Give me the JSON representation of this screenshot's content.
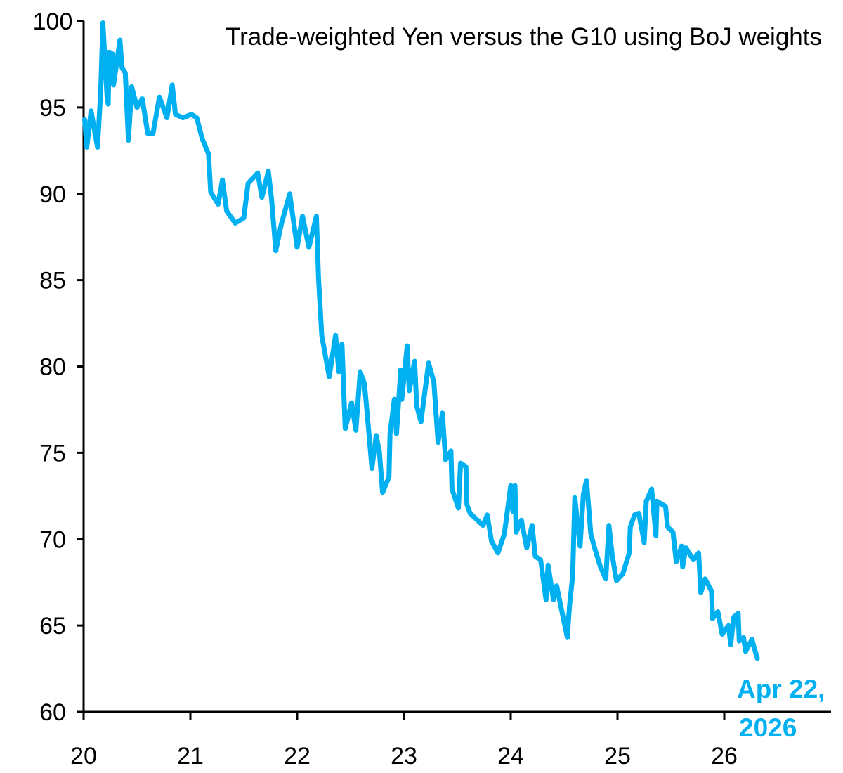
{
  "chart_data": {
    "type": "line",
    "title": "Trade-weighted Yen versus the G10 using BoJ weights",
    "xlabel": "",
    "ylabel": "",
    "xlim": [
      20,
      27
    ],
    "ylim": [
      60,
      100
    ],
    "x_ticks": [
      "20",
      "21",
      "22",
      "23",
      "24",
      "25",
      "26"
    ],
    "y_ticks": [
      "60",
      "65",
      "70",
      "75",
      "80",
      "85",
      "90",
      "95",
      "100"
    ],
    "grid": false,
    "legend": "none",
    "line_color": "#00B0F0",
    "annotation": {
      "line1": "Apr 22,",
      "line2": "2026",
      "color": "#00B0F0"
    },
    "series": [
      {
        "x": [
          20.01,
          20.03,
          20.07,
          20.13,
          20.16,
          20.18,
          20.22,
          20.23,
          20.24,
          20.27,
          20.28,
          20.34,
          20.36,
          20.39,
          20.42,
          20.45,
          20.5,
          20.55,
          20.6,
          20.65,
          20.71,
          20.78,
          20.83,
          20.86,
          20.93,
          21.01,
          21.06,
          21.11,
          21.17,
          21.19,
          21.26,
          21.3,
          21.34,
          21.42,
          21.5,
          21.54,
          21.63,
          21.67,
          21.73,
          21.76,
          21.8,
          21.85,
          21.93,
          22.0,
          22.05,
          22.11,
          22.18,
          22.2,
          22.23,
          22.3,
          22.36,
          22.39,
          22.42,
          22.45,
          22.51,
          22.55,
          22.59,
          22.63,
          22.67,
          22.7,
          22.74,
          22.77,
          22.8,
          22.86,
          22.87,
          22.91,
          22.93,
          22.97,
          22.98,
          23.03,
          23.05,
          23.1,
          23.12,
          23.16,
          23.23,
          23.28,
          23.32,
          23.36,
          23.39,
          23.44,
          23.45,
          23.51,
          23.53,
          23.58,
          23.59,
          23.62,
          23.74,
          23.78,
          23.82,
          23.88,
          23.94,
          24.0,
          24.02,
          24.04,
          24.05,
          24.1,
          24.15,
          24.2,
          24.23,
          24.28,
          24.33,
          24.35,
          24.4,
          24.43,
          24.47,
          24.53,
          24.55,
          24.58,
          24.6,
          24.65,
          24.68,
          24.71,
          24.75,
          24.79,
          24.84,
          24.89,
          24.92,
          24.95,
          24.99,
          25.05,
          25.11,
          25.12,
          25.16,
          25.2,
          25.25,
          25.27,
          25.32,
          25.36,
          25.37,
          25.45,
          25.47,
          25.52,
          25.55,
          25.6,
          25.61,
          25.64,
          25.71,
          25.76,
          25.78,
          25.82,
          25.88,
          25.89,
          25.94,
          25.98,
          26.04,
          26.06,
          26.09,
          26.13,
          26.14,
          26.18,
          26.2,
          26.26,
          26.28,
          26.31
        ],
        "y": [
          94.3,
          92.7,
          94.8,
          92.7,
          95.9,
          99.9,
          95.6,
          95.2,
          98.2,
          98.1,
          96.3,
          98.9,
          97.3,
          97.0,
          93.1,
          96.2,
          95.0,
          95.5,
          93.5,
          93.5,
          95.6,
          94.4,
          96.3,
          94.6,
          94.4,
          94.6,
          94.4,
          93.2,
          92.3,
          90.1,
          89.4,
          90.8,
          89.0,
          88.3,
          88.6,
          90.6,
          91.2,
          89.8,
          91.3,
          89.7,
          86.7,
          88.2,
          90.0,
          86.9,
          88.7,
          86.9,
          88.7,
          85.1,
          81.8,
          79.4,
          81.8,
          79.7,
          81.3,
          76.4,
          77.9,
          76.3,
          79.7,
          79.0,
          76.3,
          74.1,
          76.0,
          75.1,
          72.7,
          73.6,
          76.1,
          78.1,
          76.1,
          79.8,
          78.1,
          81.2,
          78.6,
          80.3,
          77.7,
          76.8,
          80.2,
          79.1,
          75.6,
          77.3,
          74.6,
          75.1,
          72.9,
          71.8,
          74.4,
          74.2,
          72.0,
          71.5,
          70.8,
          71.4,
          69.9,
          69.2,
          70.3,
          73.1,
          71.6,
          73.1,
          70.4,
          71.1,
          69.5,
          70.8,
          69.0,
          68.8,
          66.5,
          68.5,
          66.5,
          67.3,
          66.1,
          64.3,
          66.1,
          67.9,
          72.4,
          69.6,
          72.6,
          73.4,
          70.3,
          69.4,
          68.4,
          67.7,
          70.8,
          69.1,
          67.6,
          68.0,
          69.2,
          70.7,
          71.4,
          71.5,
          69.8,
          72.2,
          72.9,
          70.2,
          72.2,
          71.9,
          70.7,
          70.4,
          68.7,
          69.6,
          68.4,
          69.5,
          68.8,
          69.2,
          66.9,
          67.7,
          67.0,
          65.4,
          65.8,
          64.5,
          65.0,
          63.9,
          65.5,
          65.7,
          64.1,
          64.3,
          63.5,
          64.2,
          63.7,
          63.1
        ]
      }
    ]
  }
}
